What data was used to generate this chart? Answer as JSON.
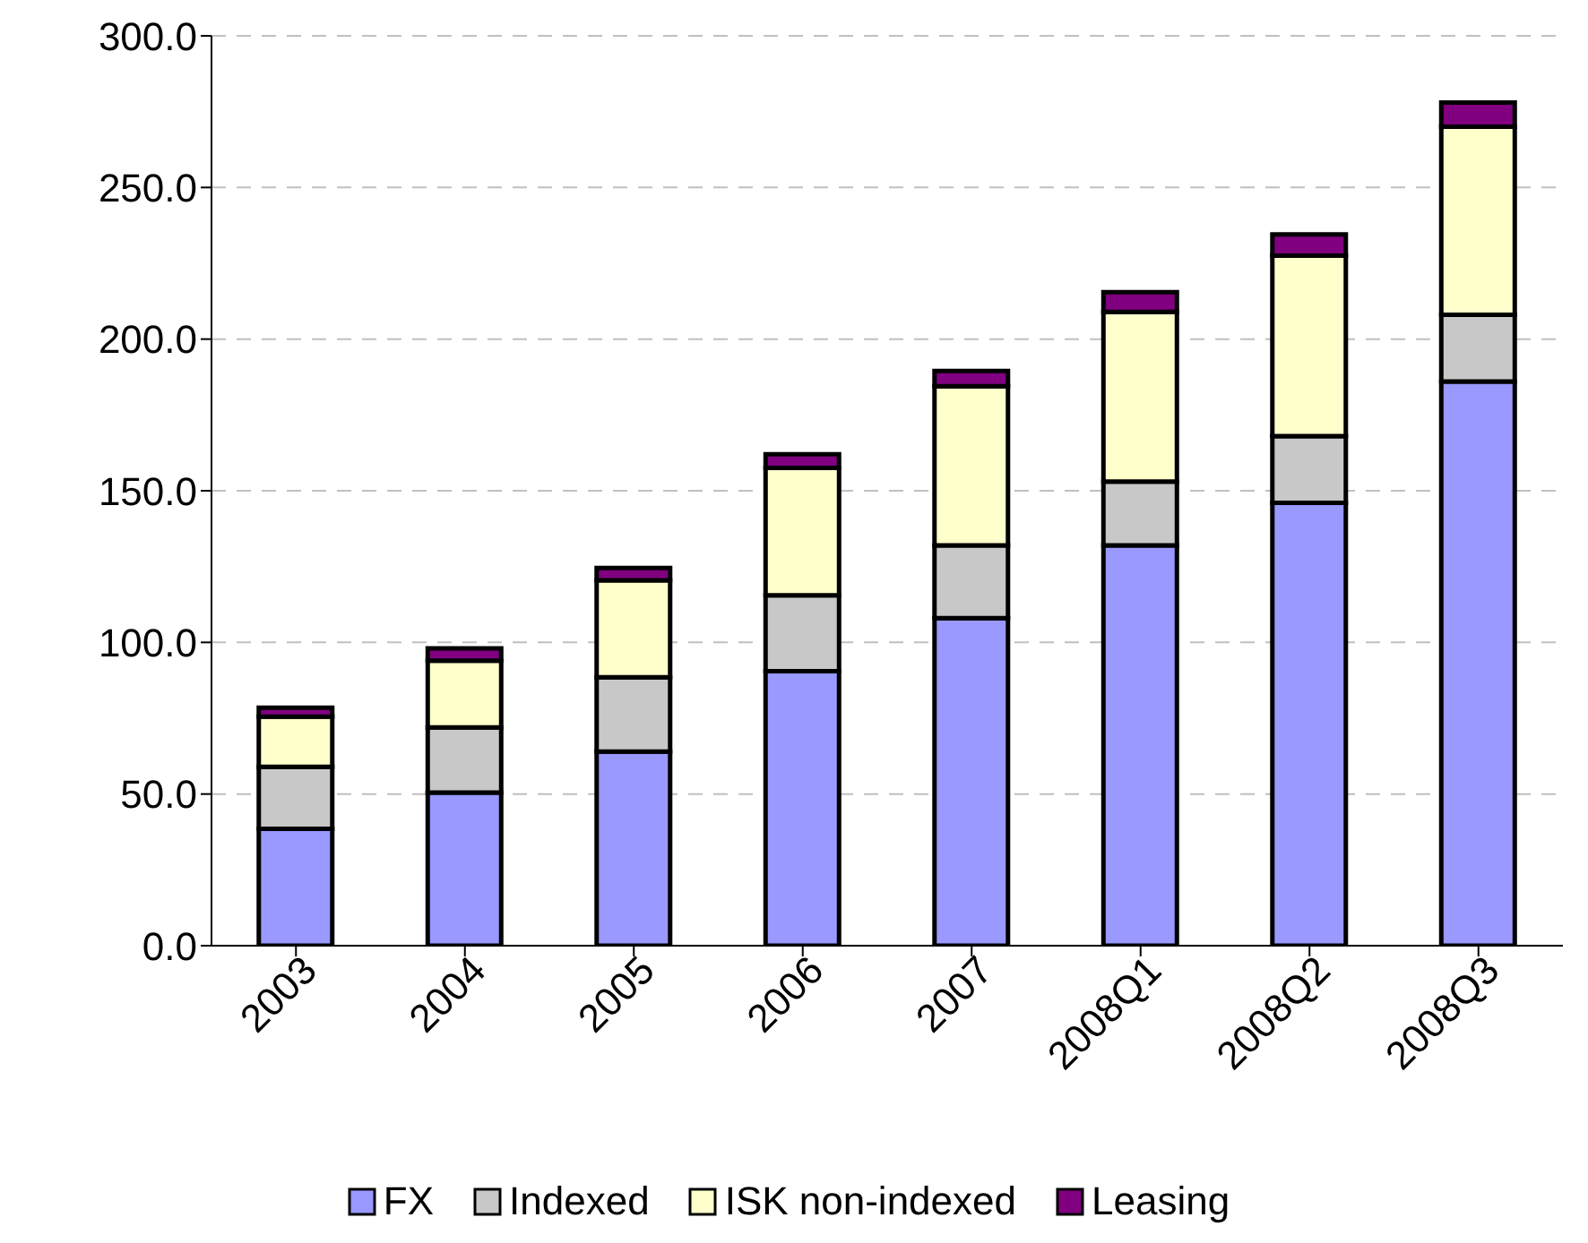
{
  "chart_data": {
    "type": "bar",
    "stacked": true,
    "categories": [
      "2003",
      "2004",
      "2005",
      "2006",
      "2007",
      "2008Q1",
      "2008Q2",
      "2008Q3"
    ],
    "series": [
      {
        "name": "FX",
        "color": "#9999ff",
        "values": [
          38.5,
          50.5,
          64,
          90.5,
          108,
          132,
          146,
          186
        ]
      },
      {
        "name": "Indexed",
        "color": "#c8c8c8",
        "values": [
          20.5,
          21.5,
          24.5,
          25,
          24,
          21,
          22,
          22
        ]
      },
      {
        "name": "ISK non-indexed",
        "color": "#ffffcc",
        "values": [
          16.5,
          22,
          32,
          42,
          52.5,
          56,
          59.5,
          62
        ]
      },
      {
        "name": "Leasing",
        "color": "#800080",
        "values": [
          3,
          4,
          4,
          4.5,
          5,
          6.5,
          7,
          8
        ]
      }
    ],
    "ylim": [
      0,
      300
    ],
    "yticks": [
      {
        "value": 0,
        "label": "0.0"
      },
      {
        "value": 50,
        "label": "50.0"
      },
      {
        "value": 100,
        "label": "100.0"
      },
      {
        "value": 150,
        "label": "150.0"
      },
      {
        "value": 200,
        "label": "200.0"
      },
      {
        "value": 250,
        "label": "250.0"
      },
      {
        "value": 300,
        "label": "300.0"
      }
    ],
    "grid": "y",
    "legend": "bottom"
  }
}
